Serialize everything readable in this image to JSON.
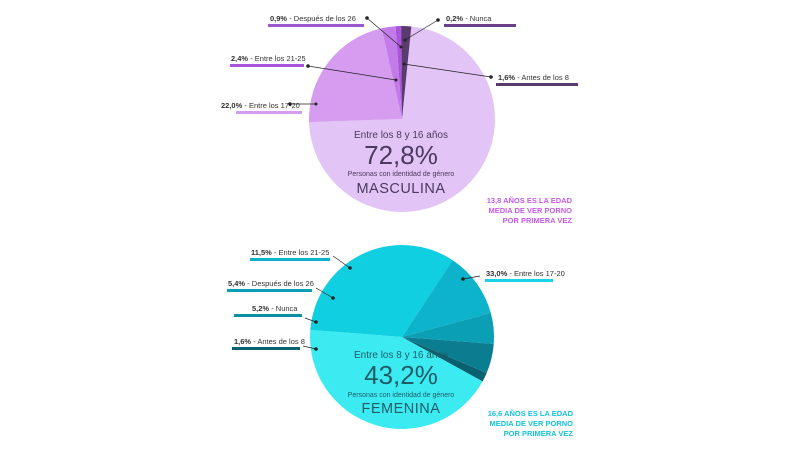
{
  "chart_data": [
    {
      "type": "pie",
      "slices": [
        {
          "value": 72.8,
          "label": "Entre los 8 y 16 años",
          "color": "#e2c4f6"
        },
        {
          "value": 22.0,
          "label": "Entre los 17-20",
          "color": "#d59cf0"
        },
        {
          "value": 2.4,
          "label": "Entre los 21-25",
          "color": "#c27be8"
        },
        {
          "value": 0.9,
          "label": "Después de los 26",
          "color": "#a855db"
        },
        {
          "value": 0.2,
          "label": "Nunca",
          "color": "#7e3fa8"
        },
        {
          "value": 1.6,
          "label": "Antes de los 8",
          "color": "#5b3a6e"
        }
      ],
      "center_caption": "Entre los 8 y 16 años",
      "center_value": "72,8%",
      "identity_caption": "Personas con identidad de género",
      "identity": "MASCULINA",
      "callouts": [
        {
          "pct": "0,9%",
          "text": " - Después de los 26",
          "color": "#9b59d0"
        },
        {
          "pct": "0,2%",
          "text": " - Nunca",
          "color": "#6b3f8a"
        },
        {
          "pct": "2,4%",
          "text": " - Entre los 21-25",
          "color": "#a855db"
        },
        {
          "pct": "1,6%",
          "text": " - Antes de los 8",
          "color": "#5b3a6e"
        },
        {
          "pct": "22,0%",
          "text": " - Entre los 17-20",
          "color": "#d59cf0"
        }
      ],
      "note": [
        "13,8 AÑOS ES LA EDAD",
        "MEDIA DE VER PORNO",
        "POR PRIMERA VEZ"
      ],
      "note_color": "#c55ae8",
      "text_color": "#4a3a5e"
    },
    {
      "type": "pie",
      "slices": [
        {
          "value": 43.2,
          "label": "Entre los 8 y 16 años",
          "color": "#3cebf2"
        },
        {
          "value": 33.0,
          "label": "Entre los 17-20",
          "color": "#0fcfe0"
        },
        {
          "value": 11.5,
          "label": "Entre los 21-25",
          "color": "#0cb3ca"
        },
        {
          "value": 5.4,
          "label": "Después de los 26",
          "color": "#0b9fb5"
        },
        {
          "value": 5.2,
          "label": "Nunca",
          "color": "#0a7e90"
        },
        {
          "value": 1.6,
          "label": "Antes de los 8",
          "color": "#09606e"
        }
      ],
      "center_caption": "Entre los 8 y 16 años",
      "center_value": "43,2%",
      "identity_caption": "Personas con identidad de género",
      "identity": "FEMENINA",
      "callouts": [
        {
          "pct": "11,5%",
          "text": " - Entre los 21-25",
          "color": "#0cb3ca"
        },
        {
          "pct": "33,0%",
          "text": " - Entre los 17-20",
          "color": "#19d2e6"
        },
        {
          "pct": "5,4%",
          "text": " - Después de los 26",
          "color": "#0b9fb5"
        },
        {
          "pct": "5,2%",
          "text": " - Nunca",
          "color": "#0a8fa3"
        },
        {
          "pct": "1,6%",
          "text": " - Antes de los 8",
          "color": "#09606e"
        }
      ],
      "note": [
        "16,6 AÑOS ES LA EDAD",
        "MEDIA DE VER PORNO",
        "POR PRIMERA VEZ"
      ],
      "note_color": "#13c3d8",
      "text_color": "#1f5c66"
    }
  ]
}
